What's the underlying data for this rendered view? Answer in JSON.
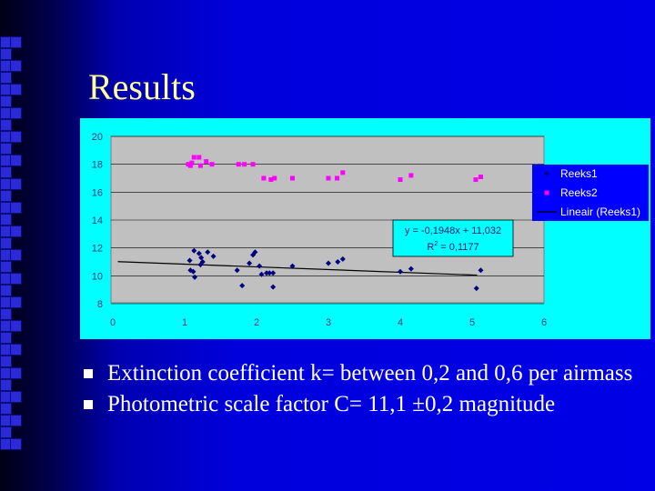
{
  "slide": {
    "title": "Results",
    "bullets": [
      "Extinction coefficient k= between  0,2 and 0,6 per airmass",
      "Photometric scale factor C= 11,1 ±0,2 magnitude"
    ]
  },
  "colors": {
    "chart_bg": "#00ffff",
    "plot_bg": "#c0c0c0",
    "series1": "#000080",
    "series2": "#ff00ff",
    "title": "#ffff99"
  },
  "chart_data": {
    "type": "scatter",
    "xlim": [
      0,
      6
    ],
    "ylim": [
      8,
      20
    ],
    "xticks": [
      "0",
      "1",
      "2",
      "3",
      "4",
      "5",
      "6"
    ],
    "yticks": [
      "8",
      "10",
      "12",
      "14",
      "16",
      "18",
      "20"
    ],
    "gridlines": "horizontal",
    "legend_position": "right",
    "series": [
      {
        "name": "Reeks1",
        "marker": "diamond",
        "color": "#000080",
        "points": [
          [
            1.07,
            11.1
          ],
          [
            1.08,
            10.4
          ],
          [
            1.12,
            10.3
          ],
          [
            1.13,
            11.8
          ],
          [
            1.14,
            9.9
          ],
          [
            1.2,
            11.6
          ],
          [
            1.22,
            10.8
          ],
          [
            1.23,
            11.3
          ],
          [
            1.25,
            11.0
          ],
          [
            1.32,
            11.7
          ],
          [
            1.4,
            11.4
          ],
          [
            1.73,
            10.4
          ],
          [
            1.8,
            9.3
          ],
          [
            1.9,
            10.9
          ],
          [
            1.95,
            11.5
          ],
          [
            1.98,
            11.7
          ],
          [
            2.04,
            10.7
          ],
          [
            2.07,
            10.1
          ],
          [
            2.14,
            10.2
          ],
          [
            2.18,
            10.2
          ],
          [
            2.23,
            9.2
          ],
          [
            2.23,
            10.2
          ],
          [
            2.5,
            10.7
          ],
          [
            3.0,
            10.9
          ],
          [
            3.13,
            11.0
          ],
          [
            3.2,
            11.2
          ],
          [
            4.0,
            10.3
          ],
          [
            4.15,
            10.5
          ],
          [
            5.06,
            9.1
          ],
          [
            5.12,
            10.4
          ]
        ]
      },
      {
        "name": "Reeks2",
        "marker": "square",
        "color": "#ff00ff",
        "points": [
          [
            1.05,
            18.0
          ],
          [
            1.08,
            17.9
          ],
          [
            1.1,
            18.1
          ],
          [
            1.13,
            18.5
          ],
          [
            1.2,
            18.5
          ],
          [
            1.22,
            17.9
          ],
          [
            1.3,
            18.2
          ],
          [
            1.38,
            18.0
          ],
          [
            1.75,
            18.0
          ],
          [
            1.83,
            18.0
          ],
          [
            1.95,
            18.0
          ],
          [
            2.1,
            17.0
          ],
          [
            2.2,
            16.9
          ],
          [
            2.25,
            17.0
          ],
          [
            2.5,
            17.0
          ],
          [
            3.0,
            17.0
          ],
          [
            3.12,
            17.0
          ],
          [
            3.2,
            17.4
          ],
          [
            4.0,
            16.9
          ],
          [
            4.15,
            17.2
          ],
          [
            5.05,
            16.9
          ],
          [
            5.12,
            17.1
          ]
        ]
      }
    ],
    "trendline": {
      "name": "Lineair (Reeks1)",
      "slope": -0.1948,
      "intercept": 11.032,
      "x_range": [
        0.07,
        5.07
      ]
    },
    "annotation": {
      "equation": "y = -0,1948x + 11,032",
      "r2_prefix": "R",
      "r2_sup": "2",
      "r2_suffix": " = 0,1177"
    },
    "legend": [
      "Reeks1",
      "Reeks2",
      "Lineair (Reeks1)"
    ]
  }
}
